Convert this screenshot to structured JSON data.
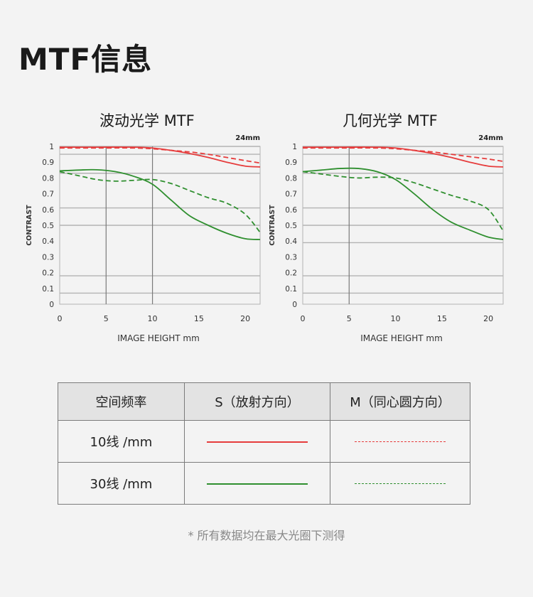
{
  "page_title": "MTF信息",
  "colors": {
    "red": "#e63c3c",
    "green": "#2f8f2f",
    "grid": "#b3b3b3",
    "axis_text": "#333333"
  },
  "chart_data": [
    {
      "type": "line",
      "title": "波动光学 MTF",
      "focal_label": "24mm",
      "xlabel": "IMAGE HEIGHT  mm",
      "ylabel": "CONTRAST",
      "xlim": [
        0,
        21.6
      ],
      "ylim": [
        0,
        1.0
      ],
      "x_ticks": [
        0,
        5,
        10,
        15,
        20
      ],
      "y_ticks": [
        {
          "v": 1.0,
          "label": "1"
        },
        {
          "v": 0.9,
          "label": "0.9"
        },
        {
          "v": 0.8,
          "label": "0.8"
        },
        {
          "v": 0.7,
          "label": "0.7"
        },
        {
          "v": 0.6,
          "label": "0.6"
        },
        {
          "v": 0.5,
          "label": "0.5"
        },
        {
          "v": 0.4,
          "label": "0.4"
        },
        {
          "v": 0.3,
          "label": "0.3"
        },
        {
          "v": 0.2,
          "label": "0.2"
        },
        {
          "v": 0.1,
          "label": "0.1"
        },
        {
          "v": 0.0,
          "label": "0"
        }
      ],
      "h_grid": [
        1.0,
        0.95,
        0.83,
        0.61,
        0.5,
        0.18,
        0.07
      ],
      "v_grid": [
        5,
        10
      ],
      "series": [
        {
          "color": "red",
          "dash": false,
          "x": [
            0,
            4,
            8,
            10,
            12,
            14,
            16,
            18,
            20,
            21.6
          ],
          "y": [
            0.995,
            0.995,
            0.995,
            0.99,
            0.975,
            0.955,
            0.93,
            0.9,
            0.875,
            0.87
          ]
        },
        {
          "color": "red",
          "dash": true,
          "x": [
            0,
            4,
            8,
            10,
            12,
            14,
            16,
            18,
            20,
            21.6
          ],
          "y": [
            0.99,
            0.99,
            0.99,
            0.985,
            0.975,
            0.965,
            0.95,
            0.93,
            0.91,
            0.895
          ]
        },
        {
          "color": "green",
          "dash": false,
          "x": [
            0,
            2,
            4,
            6,
            8,
            10,
            12,
            14,
            16,
            18,
            20,
            21.6
          ],
          "y": [
            0.845,
            0.85,
            0.852,
            0.84,
            0.81,
            0.76,
            0.66,
            0.56,
            0.5,
            0.45,
            0.415,
            0.41
          ]
        },
        {
          "color": "green",
          "dash": true,
          "x": [
            0,
            2,
            4,
            6,
            8,
            10,
            12,
            14,
            16,
            18,
            20,
            21.6
          ],
          "y": [
            0.84,
            0.815,
            0.79,
            0.78,
            0.785,
            0.79,
            0.765,
            0.72,
            0.675,
            0.64,
            0.57,
            0.455
          ]
        }
      ]
    },
    {
      "type": "line",
      "title": "几何光学 MTF",
      "focal_label": "24mm",
      "xlabel": "IMAGE HEIGHT  mm",
      "ylabel": "CONTRAST",
      "xlim": [
        0,
        21.6
      ],
      "ylim": [
        0,
        1.0
      ],
      "x_ticks": [
        0,
        5,
        10,
        15,
        20
      ],
      "y_ticks": [
        {
          "v": 1.0,
          "label": "1"
        },
        {
          "v": 0.9,
          "label": "0.9"
        },
        {
          "v": 0.8,
          "label": "0.8"
        },
        {
          "v": 0.7,
          "label": "0.7"
        },
        {
          "v": 0.6,
          "label": "0.6"
        },
        {
          "v": 0.5,
          "label": "0.5"
        },
        {
          "v": 0.4,
          "label": "0.4"
        },
        {
          "v": 0.3,
          "label": "0.3"
        },
        {
          "v": 0.2,
          "label": "0.2"
        },
        {
          "v": 0.1,
          "label": "0.1"
        },
        {
          "v": 0.0,
          "label": "0"
        }
      ],
      "h_grid": [
        1.0,
        0.95,
        0.83,
        0.61,
        0.5,
        0.39,
        0.18,
        0.07
      ],
      "v_grid": [
        5
      ],
      "series": [
        {
          "color": "red",
          "dash": false,
          "x": [
            0,
            4,
            8,
            10,
            12,
            14,
            16,
            18,
            20,
            21.6
          ],
          "y": [
            0.995,
            0.995,
            0.995,
            0.99,
            0.975,
            0.955,
            0.93,
            0.9,
            0.875,
            0.87
          ]
        },
        {
          "color": "red",
          "dash": true,
          "x": [
            0,
            4,
            8,
            10,
            12,
            14,
            16,
            18,
            20,
            21.6
          ],
          "y": [
            0.99,
            0.99,
            0.99,
            0.985,
            0.975,
            0.965,
            0.95,
            0.935,
            0.92,
            0.905
          ]
        },
        {
          "color": "green",
          "dash": false,
          "x": [
            0,
            2,
            4,
            6,
            8,
            10,
            12,
            14,
            16,
            18,
            20,
            21.6
          ],
          "y": [
            0.84,
            0.85,
            0.86,
            0.86,
            0.84,
            0.79,
            0.7,
            0.6,
            0.52,
            0.47,
            0.425,
            0.41
          ]
        },
        {
          "color": "green",
          "dash": true,
          "x": [
            0,
            2,
            4,
            6,
            8,
            10,
            12,
            14,
            16,
            18,
            20,
            21.6
          ],
          "y": [
            0.84,
            0.825,
            0.81,
            0.8,
            0.805,
            0.8,
            0.77,
            0.73,
            0.69,
            0.655,
            0.6,
            0.465
          ]
        }
      ]
    }
  ],
  "legend_table": {
    "headers": [
      "空间频率",
      "S（放射方向）",
      "M（同心圆方向）"
    ],
    "rows": [
      {
        "label": "10线 /mm",
        "s_color": "red",
        "m_color": "red"
      },
      {
        "label": "30线 /mm",
        "s_color": "green",
        "m_color": "green"
      }
    ]
  },
  "footnote": "* 所有数据均在最大光圈下测得"
}
